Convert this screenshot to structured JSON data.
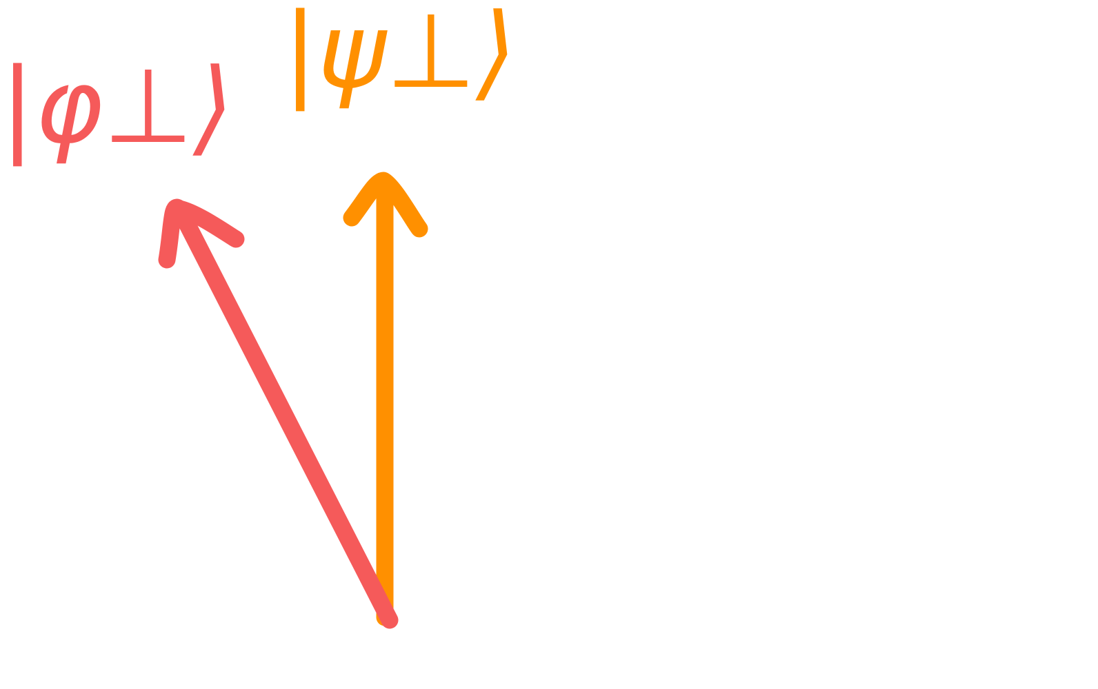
{
  "vectors": [
    {
      "label": "|φ⊥⟩"
    },
    {
      "label": "|ψ⊥⟩"
    }
  ]
}
